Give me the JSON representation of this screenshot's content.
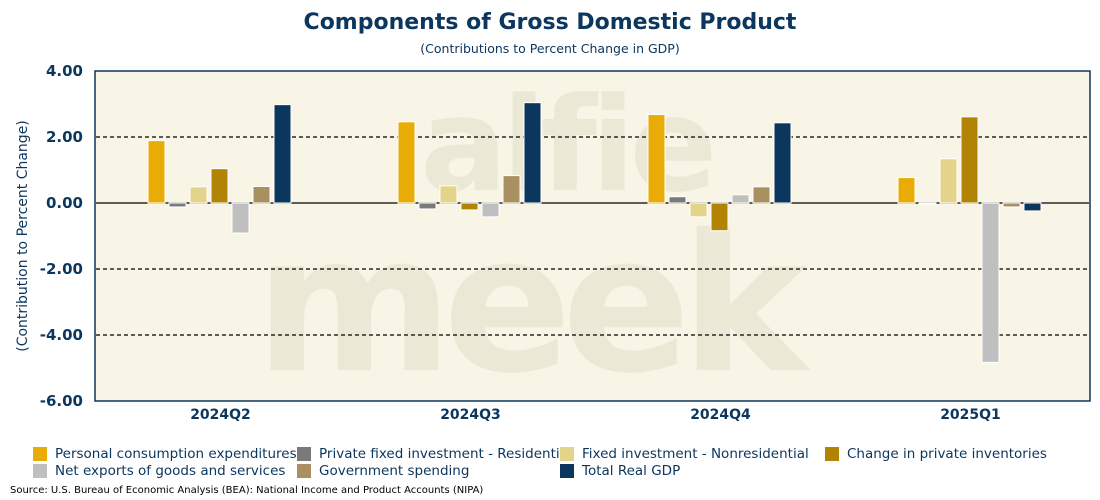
{
  "chart_data": {
    "type": "bar",
    "title": "Components of Gross Domestic Product",
    "subtitle": "(Contributions to Percent Change in GDP)",
    "xlabel": "",
    "ylabel": "(Contribution to Percent Change)",
    "ylim": [
      -6,
      4
    ],
    "yticks": [
      "-6.00",
      "-4.00",
      "-2.00",
      "0.00",
      "2.00",
      "4.00"
    ],
    "ytick_values": [
      -6,
      -4,
      -2,
      0,
      2,
      4
    ],
    "grid": true,
    "legend_position": "bottom",
    "categories": [
      "2024Q2",
      "2024Q3",
      "2024Q4",
      "2025Q1"
    ],
    "series": [
      {
        "name": "Personal consumption expenditures",
        "color": "#e9ab05",
        "values": [
          1.89,
          2.46,
          2.68,
          0.77
        ]
      },
      {
        "name": "Private fixed investment - Residential",
        "color": "#7a7a7a",
        "values": [
          -0.12,
          -0.18,
          0.19,
          -0.03
        ]
      },
      {
        "name": "Fixed investment - Nonresidential",
        "color": "#e4d38a",
        "values": [
          0.49,
          0.52,
          -0.42,
          1.34
        ]
      },
      {
        "name": "Change in private inventories",
        "color": "#b38305",
        "values": [
          1.04,
          -0.21,
          -0.84,
          2.61
        ]
      },
      {
        "name": "Net exports of goods and services",
        "color": "#bfbfbf",
        "values": [
          -0.91,
          -0.42,
          0.25,
          -4.83
        ]
      },
      {
        "name": "Government spending",
        "color": "#a89060",
        "values": [
          0.5,
          0.83,
          0.49,
          -0.12
        ]
      },
      {
        "name": "Total Real GDP",
        "color": "#0b365e",
        "values": [
          2.98,
          3.04,
          2.43,
          -0.24
        ]
      }
    ]
  },
  "watermark": "alfie meek",
  "source": "Source: U.S. Bureau of Economic Analysis (BEA): National Income and Product Accounts (NIPA)",
  "colors": {
    "title": "#0b365e",
    "plot_bg": "#f8f5e6"
  }
}
